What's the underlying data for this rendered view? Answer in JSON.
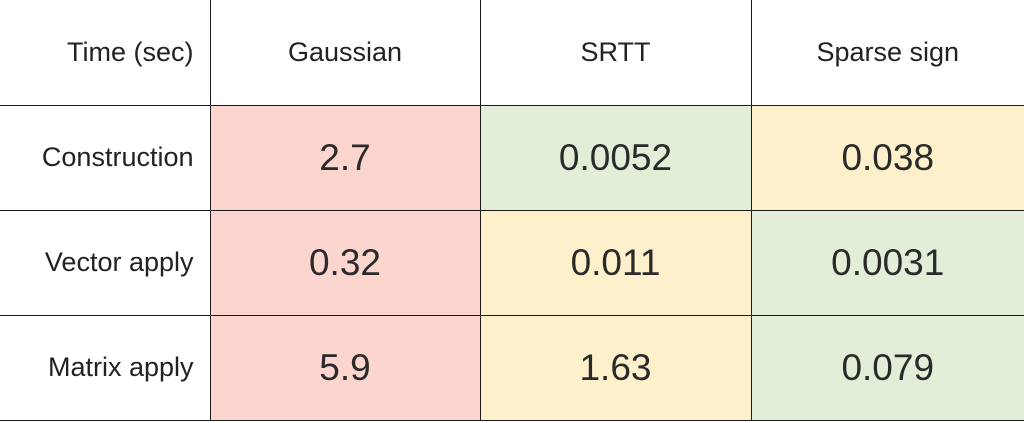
{
  "chart_data": {
    "type": "table",
    "corner_label": "Time (sec)",
    "columns": [
      "Gaussian",
      "SRTT",
      "Sparse sign"
    ],
    "rows": [
      {
        "label": "Construction",
        "values": [
          "2.7",
          "0.0052",
          "0.038"
        ],
        "colors": [
          "#fdd5cf",
          "#e2eed8",
          "#fdf0cb"
        ]
      },
      {
        "label": "Vector apply",
        "values": [
          "0.32",
          "0.011",
          "0.0031"
        ],
        "colors": [
          "#fdd5cf",
          "#fdf0cb",
          "#e2eed8"
        ]
      },
      {
        "label": "Matrix apply",
        "values": [
          "5.9",
          "1.63",
          "0.079"
        ],
        "colors": [
          "#fdd5cf",
          "#fdf0cb",
          "#e2eed8"
        ]
      }
    ],
    "palette": {
      "slowest": "#fdd5cf",
      "middle": "#fdf0cb",
      "fastest": "#e2eed8"
    }
  }
}
